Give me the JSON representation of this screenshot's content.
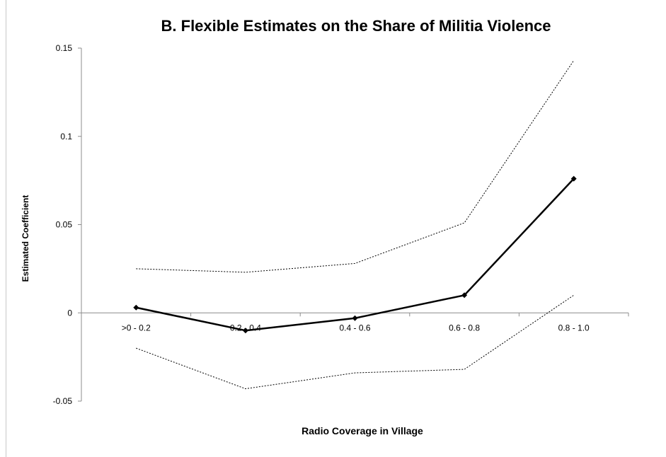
{
  "chart_data": {
    "type": "line",
    "title": "B. Flexible Estimates on the Share of Militia Violence",
    "xlabel": "Radio Coverage in Village",
    "ylabel": "Estimated Coefficient",
    "categories": [
      ">0 - 0.2",
      "0.2 - 0.4",
      "0.4 - 0.6",
      "0.6 - 0.8",
      "0.8 - 1.0"
    ],
    "ylim": [
      -0.05,
      0.15
    ],
    "yticks": [
      "0.15",
      "0.1",
      "0.05",
      "0",
      "-0.05"
    ],
    "ytick_values": [
      0.15,
      0.1,
      0.05,
      0,
      -0.05
    ],
    "grid": false,
    "legend": "none",
    "series": [
      {
        "role": "estimate",
        "style": "solid-markers",
        "values": [
          0.003,
          -0.01,
          -0.003,
          0.01,
          0.076
        ]
      },
      {
        "role": "upper-bound",
        "style": "dotted",
        "values": [
          0.025,
          0.023,
          0.028,
          0.051,
          0.143
        ]
      },
      {
        "role": "lower-bound",
        "style": "dotted",
        "values": [
          -0.02,
          -0.043,
          -0.034,
          -0.032,
          0.01
        ]
      }
    ],
    "colors": {
      "line": "#000000",
      "axis": "#8c8c8c"
    }
  }
}
